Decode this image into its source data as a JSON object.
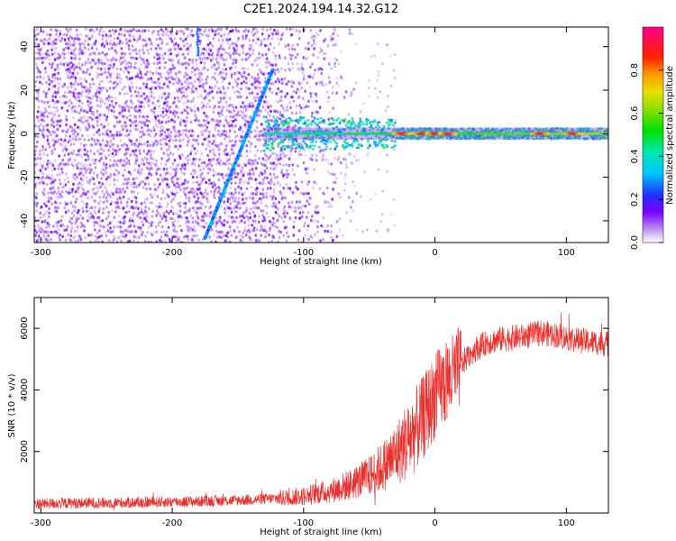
{
  "title": "C2E1.2024.194.14.32.G12",
  "colors": {
    "snr_line": "#e8322f",
    "background_dots": "#8a2be2",
    "axis": "#000000"
  },
  "chart_data": [
    {
      "type": "heatmap",
      "xlabel": "Height of straight line (km)",
      "ylabel": "Frequency (Hz)",
      "xlim": [
        -305,
        132
      ],
      "ylim": [
        -50,
        49
      ],
      "x_ticks": [
        -300,
        -200,
        -100,
        0,
        100
      ],
      "y_ticks": [
        -40,
        -20,
        0,
        20,
        40
      ],
      "colorbar": {
        "label": "Normalized spectral amplitude",
        "range": [
          0,
          1
        ],
        "ticks": [
          0.0,
          0.2,
          0.4,
          0.6,
          0.8
        ],
        "colormap": "rainbow (white-purple-blue-cyan-green-yellow-red-magenta)"
      },
      "features": [
        {
          "name": "diagonal streak",
          "from": [
            -175,
            -48
          ],
          "to": [
            -123,
            30
          ],
          "amplitude": 0.3
        },
        {
          "name": "horizontal band",
          "x_range": [
            -130,
            132
          ],
          "frequency": 0,
          "amplitude_from": 0.35,
          "amplitude_to": 0.6
        },
        {
          "name": "strong peaks",
          "x": [
            -25,
            -10,
            0,
            10,
            80,
            105
          ],
          "frequency": 0,
          "amplitude": 0.9
        },
        {
          "name": "background noise",
          "x_range": [
            -305,
            -100
          ],
          "frequency_range": [
            -50,
            49
          ],
          "amplitude": 0.05
        }
      ]
    },
    {
      "type": "line",
      "xlabel": "Height of straight line (km)",
      "ylabel": "SNR (10 * v/v)",
      "xlim": [
        -305,
        132
      ],
      "ylim": [
        0,
        7000
      ],
      "x_ticks": [
        -300,
        -200,
        -100,
        0,
        100
      ],
      "y_ticks": [
        2000,
        4000,
        6000
      ],
      "series": [
        {
          "x": [
            -305,
            -280,
            -250,
            -220,
            -200,
            -180,
            -160,
            -140,
            -120,
            -100,
            -90,
            -80,
            -70,
            -60,
            -50,
            -40,
            -30,
            -20,
            -15,
            -10,
            -5,
            0,
            5,
            10,
            15,
            20,
            25,
            30,
            40,
            50,
            60,
            70,
            80,
            90,
            100,
            110,
            120,
            132
          ],
          "y": [
            300,
            320,
            330,
            350,
            360,
            380,
            400,
            430,
            480,
            550,
            650,
            700,
            850,
            1000,
            1200,
            1500,
            1900,
            2400,
            2700,
            3000,
            3400,
            3800,
            4100,
            4300,
            4500,
            4800,
            5100,
            5300,
            5550,
            5650,
            5700,
            5750,
            5850,
            5800,
            5700,
            5600,
            5550,
            5500
          ]
        }
      ]
    }
  ]
}
